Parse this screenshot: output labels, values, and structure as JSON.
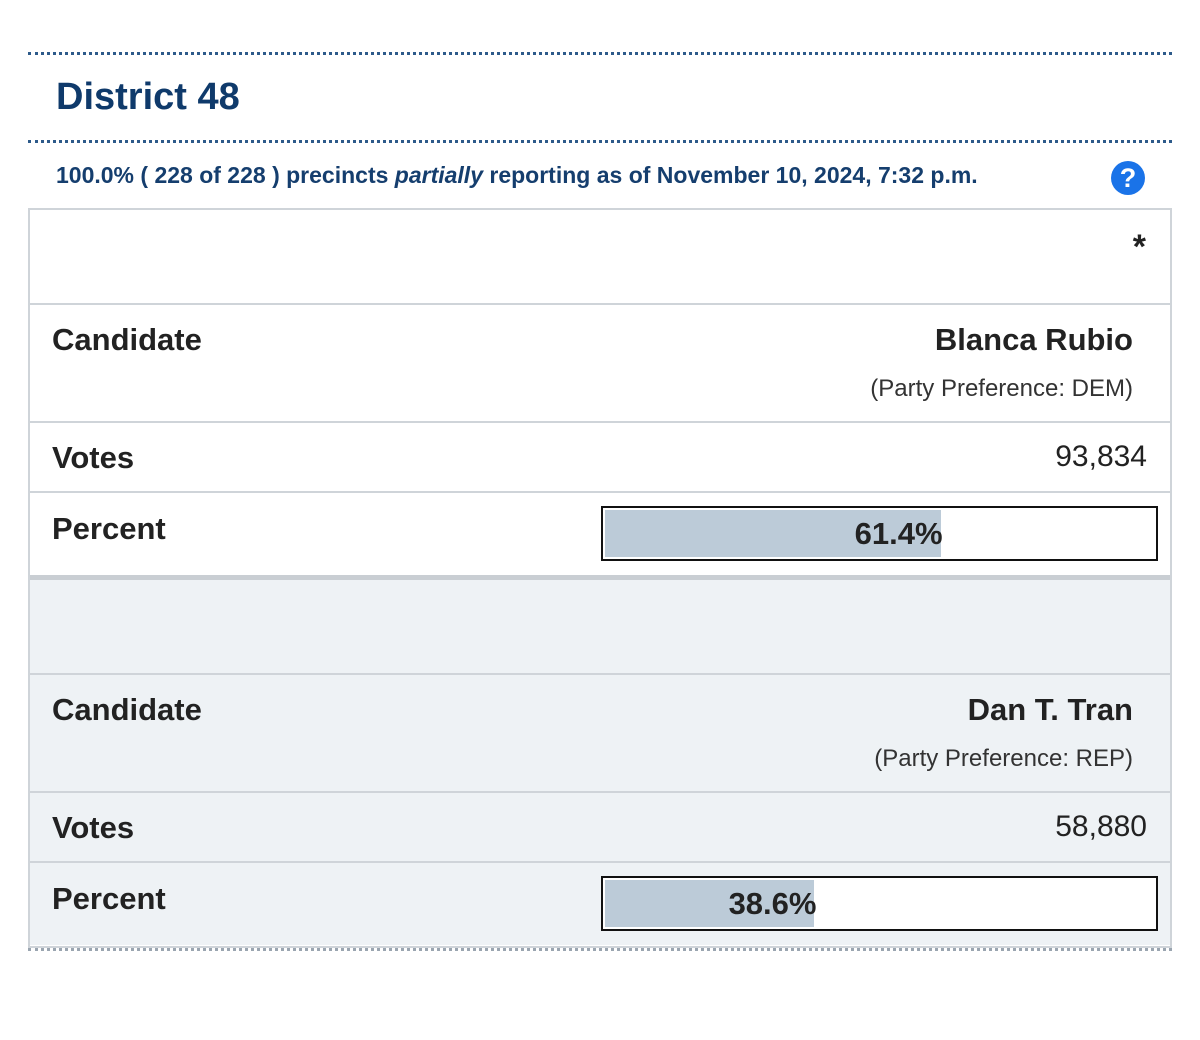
{
  "header": {
    "title": "District 48",
    "status": {
      "before": "100.0% ( 228 of 228 ) precincts",
      "emphasis": "partially",
      "after": "reporting as of November 10, 2024, 7:32 p.m."
    },
    "help_icon": "?"
  },
  "table": {
    "marker": "*",
    "candidates": [
      {
        "candidate_label": "Candidate",
        "name": "Blanca Rubio",
        "party": "(Party Preference: DEM)",
        "votes_label": "Votes",
        "votes": "93,834",
        "percent_label": "Percent",
        "percent": {
          "value": 61.4,
          "label": "61.4%"
        }
      },
      {
        "candidate_label": "Candidate",
        "name": "Dan T. Tran",
        "party": "(Party Preference: REP)",
        "votes_label": "Votes",
        "votes": "58,880",
        "percent_label": "Percent",
        "percent": {
          "value": 38.6,
          "label": "38.6%"
        }
      }
    ]
  }
}
